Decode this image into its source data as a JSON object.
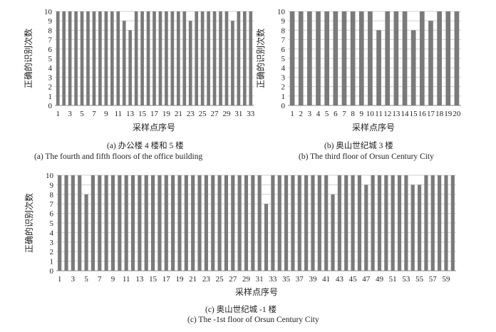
{
  "chart_data": [
    {
      "type": "bar",
      "caption_cn": "(a) 办公楼 4 楼和 5 楼",
      "caption_en": "(a) The fourth and fifth floors of the office building",
      "xlabel": "采样点序号",
      "ylabel": "正确的识别次数",
      "ylim": [
        0,
        10
      ],
      "yticks": [
        0,
        1,
        2,
        3,
        4,
        5,
        6,
        7,
        8,
        9,
        10
      ],
      "grid": true,
      "bar_color": "#7a7a7a",
      "categories": [
        1,
        2,
        3,
        4,
        5,
        6,
        7,
        8,
        9,
        10,
        11,
        12,
        13,
        14,
        15,
        16,
        17,
        18,
        19,
        20,
        21,
        22,
        23,
        24,
        25,
        26,
        27,
        28,
        29,
        30,
        31,
        32,
        33
      ],
      "category_labels_shown": [
        "1",
        "3",
        "5",
        "7",
        "9",
        "11",
        "13",
        "15",
        "17",
        "19",
        "21",
        "23",
        "25",
        "27",
        "29",
        "31",
        "33"
      ],
      "values": [
        10,
        10,
        10,
        10,
        10,
        10,
        10,
        10,
        10,
        10,
        10,
        9,
        8,
        10,
        10,
        10,
        10,
        10,
        10,
        10,
        10,
        10,
        9,
        10,
        10,
        10,
        10,
        10,
        10,
        9,
        10,
        10,
        10
      ]
    },
    {
      "type": "bar",
      "caption_cn": "(b) 奥山世纪城 3 楼",
      "caption_en": "(b) The third floor of  Orsun Century City",
      "xlabel": "采样点序号",
      "ylabel": "正确的识别次数",
      "ylim": [
        0,
        10
      ],
      "yticks": [
        0,
        1,
        2,
        3,
        4,
        5,
        6,
        7,
        8,
        9,
        10
      ],
      "grid": true,
      "bar_color": "#7a7a7a",
      "categories": [
        1,
        2,
        3,
        4,
        5,
        6,
        7,
        8,
        9,
        10,
        11,
        12,
        13,
        14,
        15,
        16,
        17,
        18,
        19,
        20
      ],
      "category_labels_shown": [
        "1",
        "2",
        "3",
        "4",
        "5",
        "6",
        "7",
        "8",
        "9",
        "10",
        "11",
        "12",
        "13",
        "14",
        "15",
        "16",
        "17",
        "18",
        "19",
        "20"
      ],
      "values": [
        10,
        10,
        10,
        10,
        10,
        10,
        10,
        10,
        10,
        10,
        8,
        10,
        10,
        10,
        8,
        10,
        9,
        10,
        10,
        10
      ]
    },
    {
      "type": "bar",
      "caption_cn": "(c) 奥山世纪城  -1 楼",
      "caption_en": "(c) The -1st floor of Orsun Century City",
      "xlabel": "采样点序号",
      "ylabel": "正确的识别次数",
      "ylim": [
        0,
        10
      ],
      "yticks": [
        0,
        1,
        2,
        3,
        4,
        5,
        6,
        7,
        8,
        9,
        10
      ],
      "grid": true,
      "bar_color": "#7a7a7a",
      "categories": [
        1,
        2,
        3,
        4,
        5,
        6,
        7,
        8,
        9,
        10,
        11,
        12,
        13,
        14,
        15,
        16,
        17,
        18,
        19,
        20,
        21,
        22,
        23,
        24,
        25,
        26,
        27,
        28,
        29,
        30,
        31,
        32,
        33,
        34,
        35,
        36,
        37,
        38,
        39,
        40,
        41,
        42,
        43,
        44,
        45,
        46,
        47,
        48,
        49,
        50,
        51,
        52,
        53,
        54,
        55,
        56,
        57,
        58,
        59,
        60
      ],
      "category_labels_shown": [
        "1",
        "3",
        "5",
        "7",
        "9",
        "11",
        "13",
        "15",
        "17",
        "19",
        "21",
        "23",
        "25",
        "27",
        "29",
        "31",
        "33",
        "35",
        "37",
        "39",
        "41",
        "43",
        "45",
        "47",
        "49",
        "51",
        "53",
        "55",
        "57",
        "59"
      ],
      "values": [
        10,
        10,
        10,
        10,
        8,
        10,
        10,
        10,
        10,
        10,
        10,
        10,
        10,
        10,
        10,
        10,
        10,
        10,
        10,
        10,
        10,
        10,
        10,
        10,
        10,
        10,
        10,
        10,
        10,
        10,
        10,
        7,
        10,
        10,
        10,
        10,
        10,
        10,
        10,
        10,
        10,
        8,
        10,
        10,
        10,
        10,
        9,
        10,
        10,
        10,
        10,
        10,
        10,
        9,
        9,
        10,
        10,
        10,
        10,
        10
      ]
    }
  ]
}
